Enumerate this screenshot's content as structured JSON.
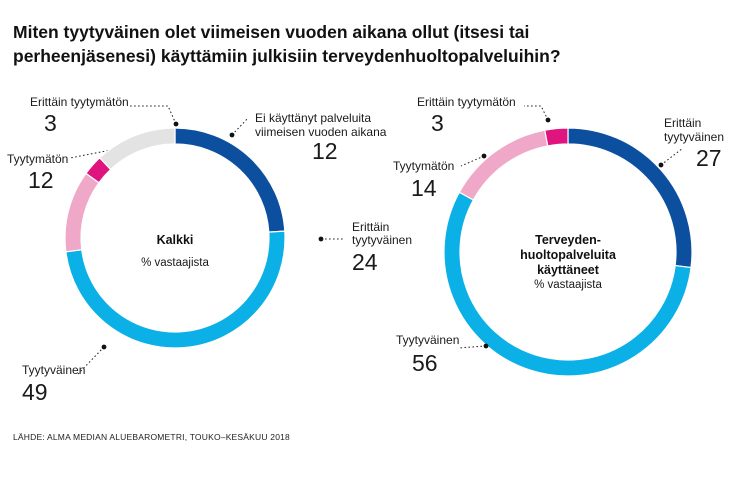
{
  "title_line1": "Miten tyytyväinen olet viimeisen vuoden aikana ollut (itsesi tai",
  "title_line2": "perheenjäsenesi) käyttämiin julkisiin terveydenhuoltopalveluihin?",
  "source": "LÄHDE: ALMA MEDIAN ALUEBAROMETRI, TOUKO–KESÄKUU 2018",
  "colors": {
    "erittain_tyytyvainen": "#0d4f9f",
    "tyytyvainen": "#0ab0e6",
    "tyytymaton": "#f0a8c8",
    "erittain_tyytymaton": "#e0147f",
    "ei_kayttanyt": "#e3e3e3"
  },
  "chart_data": [
    {
      "type": "pie",
      "center_title_lines": [
        "Kalkki"
      ],
      "center_subtitle": "% vastaajista",
      "slices": [
        {
          "label_lines": [
            "Erittäin",
            "tyytyväinen"
          ],
          "value": 24,
          "color_key": "erittain_tyytyvainen"
        },
        {
          "label_lines": [
            "Tyytyväinen"
          ],
          "value": 49,
          "color_key": "tyytyvainen"
        },
        {
          "label_lines": [
            "Tyytymätön"
          ],
          "value": 12,
          "color_key": "tyytymaton"
        },
        {
          "label_lines": [
            "Erittäin tyytymätön"
          ],
          "value": 3,
          "color_key": "erittain_tyytymaton"
        },
        {
          "label_lines": [
            "Ei käyttänyt palveluita",
            "viimeisen vuoden aikana"
          ],
          "value": 12,
          "color_key": "ei_kayttanyt"
        }
      ]
    },
    {
      "type": "pie",
      "center_title_lines": [
        "Terveyden-",
        "huoltopalveluita",
        "käyttäneet"
      ],
      "center_subtitle": "% vastaajista",
      "slices": [
        {
          "label_lines": [
            "Erittäin",
            "tyytyväinen"
          ],
          "value": 27,
          "color_key": "erittain_tyytyvainen"
        },
        {
          "label_lines": [
            "Tyytyväinen"
          ],
          "value": 56,
          "color_key": "tyytyvainen"
        },
        {
          "label_lines": [
            "Tyytymätön"
          ],
          "value": 14,
          "color_key": "tyytymaton"
        },
        {
          "label_lines": [
            "Erittäin tyytymätön"
          ],
          "value": 3,
          "color_key": "erittain_tyytymaton"
        }
      ]
    }
  ]
}
